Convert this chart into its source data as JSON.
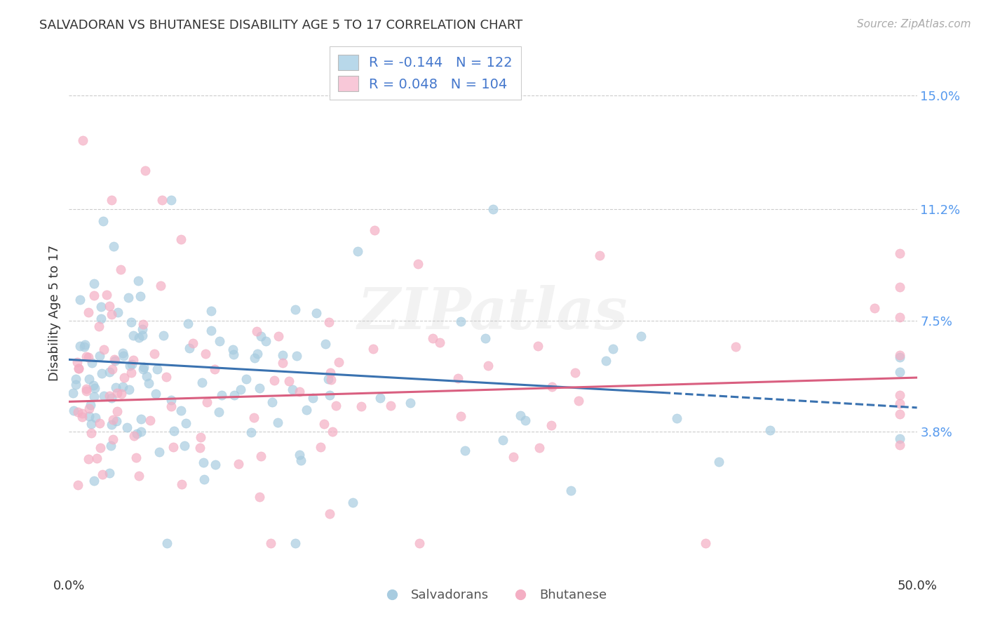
{
  "title": "SALVADORAN VS BHUTANESE DISABILITY AGE 5 TO 17 CORRELATION CHART",
  "source": "Source: ZipAtlas.com",
  "ylabel": "Disability Age 5 to 17",
  "xlim": [
    0.0,
    0.5
  ],
  "ylim": [
    -0.01,
    0.165
  ],
  "ytick_positions": [
    0.038,
    0.075,
    0.112,
    0.15
  ],
  "ytick_labels": [
    "3.8%",
    "7.5%",
    "11.2%",
    "15.0%"
  ],
  "salvadoran_R": "-0.144",
  "salvadoran_N": "122",
  "bhutanese_R": "0.048",
  "bhutanese_N": "104",
  "blue_scatter_color": "#a8cce0",
  "pink_scatter_color": "#f4afc4",
  "blue_line_color": "#3a72b0",
  "pink_line_color": "#d95f80",
  "legend_blue_color": "#b8d8ea",
  "legend_pink_color": "#f8c8d8",
  "background_color": "#ffffff",
  "grid_color": "#cccccc",
  "watermark": "ZIPatlas",
  "title_color": "#333333",
  "source_color": "#aaaaaa",
  "ytick_color": "#5599ee",
  "xtick_color": "#333333",
  "ylabel_color": "#333333"
}
